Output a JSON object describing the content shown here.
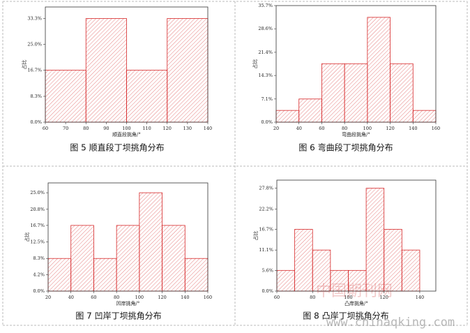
{
  "chart_data": [
    {
      "type": "histogram",
      "caption": "图 5 顺直段丁坝挑角分布",
      "xlabel": "顺直段挑角/°",
      "ylabel": "占比",
      "color": "#d62728",
      "bins": [
        60,
        80,
        100,
        120,
        140
      ],
      "values": [
        16.7,
        33.3,
        16.7,
        33.3
      ],
      "xlim": [
        60,
        140
      ],
      "xticks": [
        60,
        70,
        80,
        90,
        100,
        110,
        120,
        130,
        140
      ],
      "ylim": [
        0,
        37
      ],
      "yticks": [
        {
          "value": 0,
          "label": "0.0%"
        },
        {
          "value": 8.3,
          "label": "8.3%"
        },
        {
          "value": 16.7,
          "label": "16.7%"
        },
        {
          "value": 25.0,
          "label": "25.0%"
        },
        {
          "value": 33.3,
          "label": "33.3%"
        }
      ]
    },
    {
      "type": "histogram",
      "caption": "图 6 弯曲段丁坝挑角分布",
      "xlabel": "弯曲段挑角/°",
      "ylabel": "占比",
      "color": "#d62728",
      "bins": [
        20,
        40,
        60,
        80,
        100,
        120,
        140,
        160
      ],
      "values": [
        3.6,
        7.1,
        17.9,
        17.9,
        32.1,
        17.9,
        3.6
      ],
      "xlim": [
        20,
        160
      ],
      "xticks": [
        20,
        40,
        60,
        80,
        100,
        120,
        140,
        160
      ],
      "ylim": [
        0,
        35.7
      ],
      "yticks": [
        {
          "value": 0,
          "label": "0.0%"
        },
        {
          "value": 7.1,
          "label": "7.1%"
        },
        {
          "value": 14.3,
          "label": "14.3%"
        },
        {
          "value": 21.4,
          "label": "21.4%"
        },
        {
          "value": 28.6,
          "label": "28.6%"
        },
        {
          "value": 35.7,
          "label": "35.7%"
        }
      ]
    },
    {
      "type": "histogram",
      "caption": "图 7 凹岸丁坝挑角分布",
      "xlabel": "凹岸挑角/°",
      "ylabel": "占比",
      "color": "#d62728",
      "bins": [
        20,
        40,
        60,
        80,
        100,
        120,
        140,
        160
      ],
      "values": [
        8.3,
        16.7,
        8.3,
        16.7,
        25.0,
        16.7,
        8.3
      ],
      "xlim": [
        20,
        160
      ],
      "xticks": [
        20,
        40,
        60,
        80,
        100,
        120,
        140,
        160
      ],
      "ylim": [
        0,
        27.5
      ],
      "yticks": [
        {
          "value": 0,
          "label": "0.0%"
        },
        {
          "value": 4.2,
          "label": "4.2%"
        },
        {
          "value": 8.3,
          "label": "8.3%"
        },
        {
          "value": 12.5,
          "label": "12.5%"
        },
        {
          "value": 16.7,
          "label": "16.7%"
        },
        {
          "value": 20.8,
          "label": "20.8%"
        },
        {
          "value": 25.0,
          "label": "25.0%"
        }
      ]
    },
    {
      "type": "histogram",
      "caption": "图 8 凸岸丁坝挑角分布",
      "xlabel": "凸岸挑角/°",
      "ylabel": "占比",
      "color": "#d62728",
      "bins": [
        60,
        70,
        80,
        90,
        100,
        110,
        120,
        130,
        140
      ],
      "values": [
        5.6,
        16.7,
        11.1,
        5.6,
        5.6,
        27.8,
        16.7,
        11.1
      ],
      "xlim": [
        60,
        149
      ],
      "xticks": [
        60,
        80,
        100,
        120,
        140
      ],
      "ylim": [
        0,
        30
      ],
      "yticks": [
        {
          "value": 0,
          "label": "0.0%"
        },
        {
          "value": 5.6,
          "label": "5.6%"
        },
        {
          "value": 11.1,
          "label": "11.1%"
        },
        {
          "value": 16.7,
          "label": "16.7%"
        },
        {
          "value": 22.2,
          "label": "22.2%"
        },
        {
          "value": 27.8,
          "label": "27.8%"
        }
      ]
    }
  ],
  "watermark": {
    "name": "中国期刊网",
    "url": "www.chinaqking.com"
  }
}
